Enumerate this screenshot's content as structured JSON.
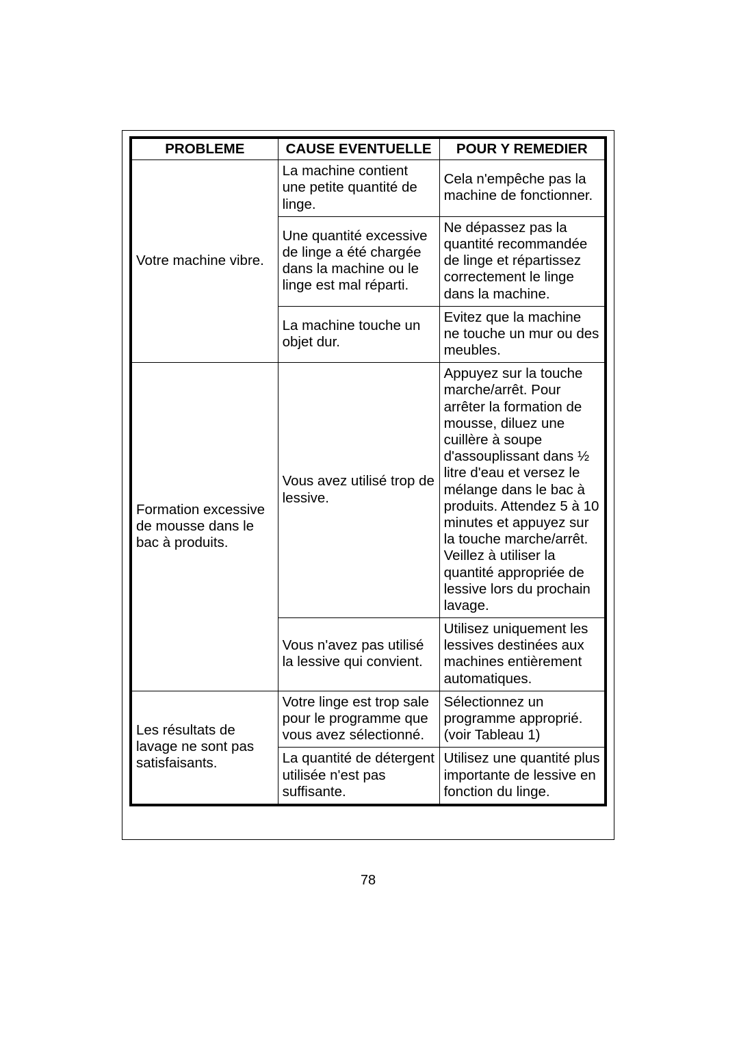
{
  "table": {
    "columns": [
      {
        "label": "PROBLEME",
        "width": "31%"
      },
      {
        "label": "CAUSE EVENTUELLE",
        "width": "34%"
      },
      {
        "label": "POUR Y REMEDIER",
        "width": "35%"
      }
    ],
    "header_fontsize": 21,
    "body_fontsize": 20.5,
    "border_outer_color": "#000000",
    "border_outer_width": 4,
    "border_inner_color": "#000000",
    "border_inner_width": 1,
    "background_color": "#ffffff",
    "text_color": "#000000",
    "groups": [
      {
        "problem": "Votre machine vibre.",
        "rows": [
          {
            "cause": "La machine contient une petite quantité de linge.",
            "remedy": "Cela n'empêche pas la machine de fonctionner."
          },
          {
            "cause": "Une quantité excessive de linge a été chargée dans la machine ou  le linge est mal réparti.",
            "remedy": "Ne dépassez pas la quantité recommandée de linge et répartissez correctement le linge dans la machine."
          },
          {
            "cause": "La machine touche un objet dur.",
            "remedy": "Evitez que la machine ne touche un mur ou des meubles."
          }
        ]
      },
      {
        "problem": "Formation excessive de mousse dans le bac à produits.",
        "rows": [
          {
            "cause": "Vous avez utilisé trop de lessive.",
            "remedy": "Appuyez sur la touche marche/arrêt. Pour arrêter la formation de mousse, diluez une cuillère à soupe d'assouplissant dans ½ litre d'eau et versez le mélange dans le bac à produits. Attendez 5 à 10 minutes et appuyez sur la touche marche/arrêt. Veillez à utiliser la quantité appropriée de lessive lors du prochain lavage."
          },
          {
            "cause": "Vous n'avez pas utilisé la lessive qui convient.",
            "remedy": "Utilisez uniquement les lessives destinées aux machines entièrement automatiques."
          }
        ]
      },
      {
        "problem": "Les résultats de lavage ne sont pas satisfaisants.",
        "rows": [
          {
            "cause": "Votre linge est trop sale pour le programme que vous avez sélectionné.",
            "remedy": "Sélectionnez un programme approprié. (voir Tableau 1)"
          },
          {
            "cause": "La quantité de détergent utilisée n'est pas suffisante.",
            "remedy": "Utilisez une quantité plus importante de lessive en fonction du linge."
          }
        ]
      }
    ]
  },
  "page_number": "78"
}
